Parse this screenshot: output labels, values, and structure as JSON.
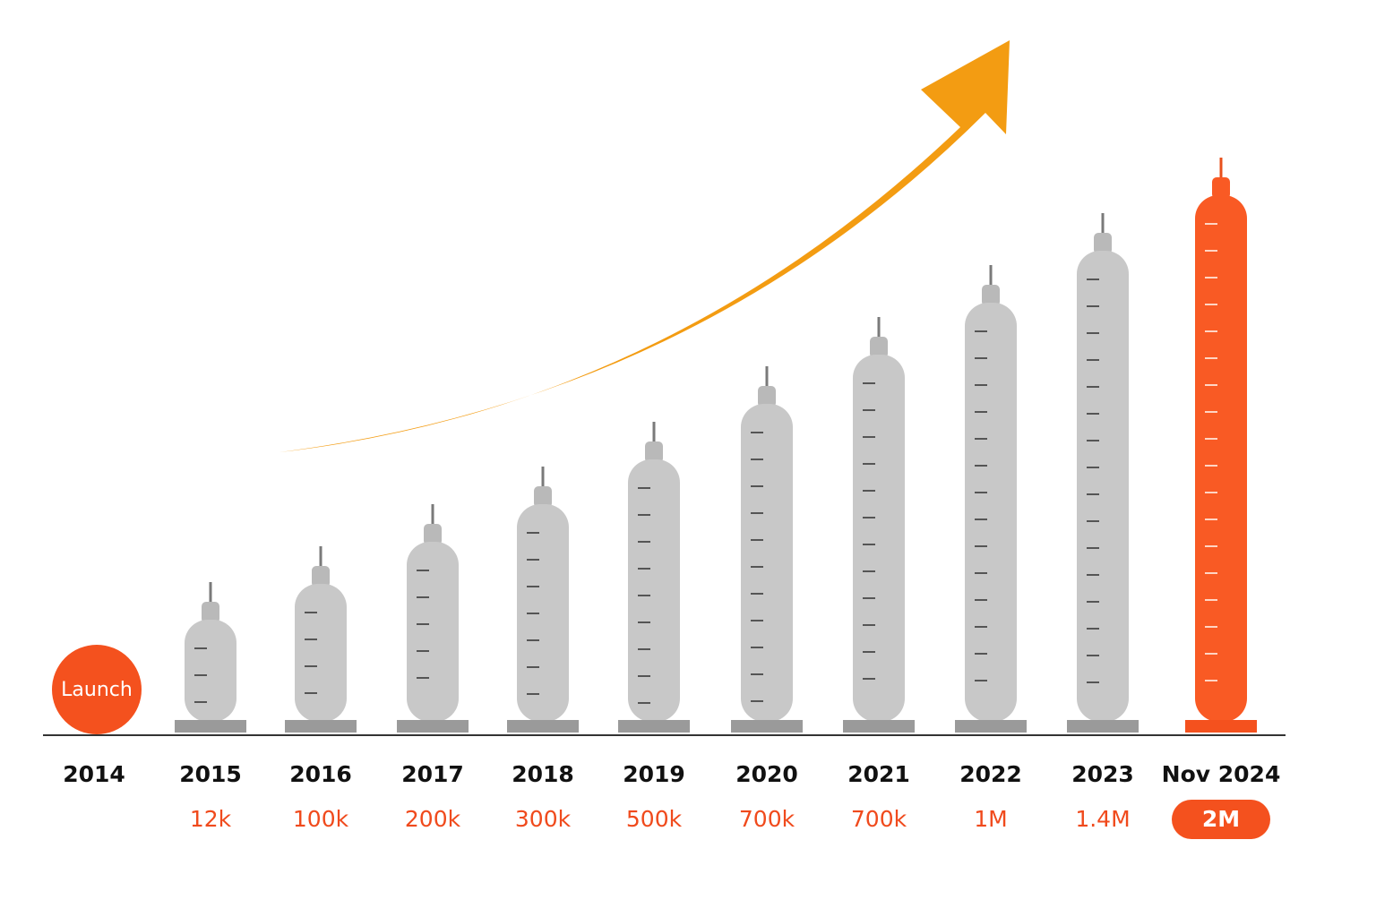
{
  "milestones": [
    {
      "year": "2014",
      "badge": "Launch"
    },
    {
      "year": "2015",
      "users": "12k"
    },
    {
      "year": "2016",
      "users": "100k"
    },
    {
      "year": "2017",
      "users": "200k"
    },
    {
      "year": "2018",
      "users": "300k"
    },
    {
      "year": "2019",
      "users": "500k"
    },
    {
      "year": "2020",
      "users": "700k"
    },
    {
      "year": "2021",
      "users": "700k"
    },
    {
      "year": "2022",
      "users": "1M"
    },
    {
      "year": "2023",
      "users": "1.4M"
    },
    {
      "year": "Nov 2024",
      "users": "2M"
    }
  ]
}
